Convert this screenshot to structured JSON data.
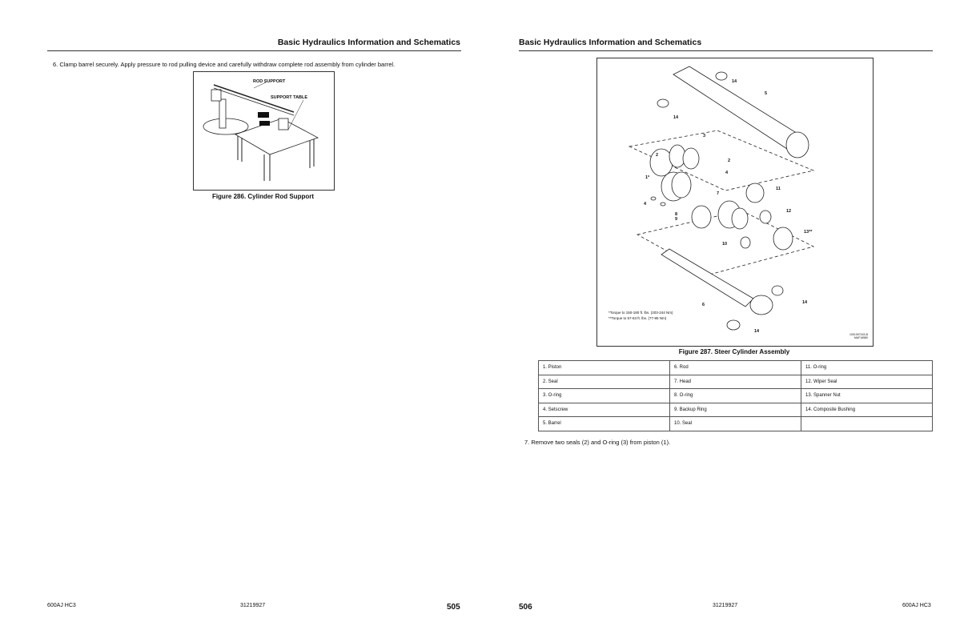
{
  "left_page": {
    "header": "Basic Hydraulics Information and Schematics",
    "step": "6.   Clamp barrel securely. Apply pressure to rod pulling device and carefully withdraw complete rod assembly from cylinder barrel.",
    "figure": {
      "callouts": [
        "ROD SUPPORT",
        "SUPPORT TABLE"
      ],
      "caption": "Figure 286. Cylinder Rod Support"
    },
    "footer": {
      "model": "600AJ HC3",
      "doc": "31219927",
      "page": "505"
    }
  },
  "right_page": {
    "header": "Basic Hydraulics Information and Schematics",
    "figure": {
      "callouts": [
        "14",
        "5",
        "14",
        "3",
        "2",
        "2",
        "4",
        "1*",
        "11",
        "7",
        "4",
        "12",
        "8",
        "9",
        "13**",
        "10",
        "6",
        "14",
        "14"
      ],
      "notes": [
        "*Torque to 150-180 ft. lbs. (203-244 Nm)",
        "**Torque to 57-63 ft. lbs. (77-85 Nm)"
      ],
      "code": [
        "1001097243-B",
        "MAF16580"
      ],
      "caption": "Figure 287. Steer Cylinder Assembly"
    },
    "parts_table": [
      [
        "1. Piston",
        "6. Rod",
        "11. O-ring"
      ],
      [
        "2. Seal",
        "7. Head",
        "12. Wiper Seal"
      ],
      [
        "3. O-ring",
        "8. O-ring",
        "13. Spanner Nut"
      ],
      [
        "4. Setscrew",
        "9. Backup Ring",
        "14. Composite Bushing"
      ],
      [
        "5. Barrel",
        "10. Seal",
        ""
      ]
    ],
    "step": "7.   Remove two seals (2) and O-ring (3) from piston (1).",
    "footer": {
      "page": "506",
      "doc": "31219927",
      "model": "600AJ HC3"
    }
  }
}
